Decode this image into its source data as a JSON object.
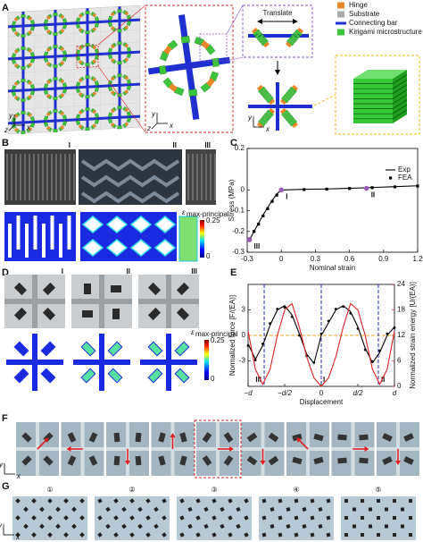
{
  "figure": {
    "panel_labels": [
      "A",
      "B",
      "C",
      "D",
      "E",
      "F",
      "G"
    ],
    "legend": [
      "Hinge",
      "Substrate",
      "Connecting bar",
      "Kirigami microstructure"
    ],
    "translate": "Translate",
    "a_axes": [
      "y",
      "z",
      "x"
    ],
    "a_inset_axes": [
      "y",
      "z",
      "x"
    ],
    "a_lower_axes": [
      "y",
      "x"
    ],
    "b_states": [
      "I",
      "II",
      "III"
    ],
    "b_colorbar": {
      "label": "ε",
      "subscript": "max-principal",
      "ticks": [
        0.25,
        0
      ]
    },
    "d_states": [
      "I",
      "II",
      "III"
    ],
    "d_colorbar": {
      "label": "ε",
      "subscript": "max-principal",
      "ticks": [
        0.25,
        0
      ]
    },
    "f_axes": [
      "y",
      "x"
    ],
    "g_steps": [
      "①",
      "②",
      "③",
      "④",
      "⑤"
    ],
    "g_axes": [
      "y",
      "x"
    ]
  },
  "chart_data": [
    {
      "type": "line",
      "xlabel": "Nominal strain",
      "ylabel": "Stress (MPa)",
      "xlim": [
        -0.3,
        1.2
      ],
      "xticks": [
        -0.3,
        0,
        0.3,
        0.6,
        0.9,
        1.2
      ],
      "ylim": [
        -0.3,
        0.2
      ],
      "yticks": [
        -0.3,
        -0.2,
        -0.1,
        0,
        0.2
      ],
      "x": [
        -0.28,
        -0.24,
        -0.2,
        -0.16,
        -0.12,
        -0.08,
        -0.04,
        0,
        0.2,
        0.4,
        0.6,
        0.8,
        1.0,
        1.2
      ],
      "series": [
        {
          "name": "Exp",
          "color": "#000000",
          "values": [
            -0.24,
            -0.2,
            -0.16,
            -0.12,
            -0.085,
            -0.05,
            -0.02,
            0,
            0.003,
            0.005,
            0.008,
            0.012,
            0.016,
            0.02
          ]
        },
        {
          "name": "FEA",
          "color": "#000000",
          "marker": "square",
          "values": [
            -0.235,
            -0.2,
            -0.165,
            -0.125,
            -0.09,
            -0.055,
            -0.025,
            0,
            0.002,
            0.004,
            0.007,
            0.011,
            0.015,
            0.019
          ]
        }
      ],
      "legend": "right",
      "annotations": [
        {
          "label": "I",
          "x": 0,
          "y": 0
        },
        {
          "label": "II",
          "x": 0.75,
          "y": 0.008
        },
        {
          "label": "III",
          "x": -0.28,
          "y": -0.24
        }
      ],
      "annotation_color": "#9b59b6"
    },
    {
      "type": "line",
      "xlabel": "Displacement",
      "ylabel": "Normalized force [F/(EA)]",
      "y2label": "Normalized strain energy [U/(EA)]",
      "xlim": [
        -1,
        1
      ],
      "xticks": [
        {
          "value": -1,
          "label": "−d"
        },
        {
          "value": -0.5,
          "label": "−d/2"
        },
        0,
        {
          "value": 0.5,
          "label": "d/2"
        },
        {
          "value": 1,
          "label": "d"
        }
      ],
      "ylim": [
        -6,
        6
      ],
      "yticks": [
        -3,
        0,
        3
      ],
      "y2lim": [
        0,
        24
      ],
      "y2ticks": [
        0,
        6,
        12,
        18,
        24
      ],
      "x": [
        -1,
        -0.9,
        -0.8,
        -0.7,
        -0.6,
        -0.5,
        -0.4,
        -0.3,
        -0.2,
        -0.1,
        0,
        0.1,
        0.2,
        0.3,
        0.4,
        0.5,
        0.6,
        0.7,
        0.8,
        0.9,
        1
      ],
      "series": [
        {
          "color": "#000000",
          "values": [
            -1,
            -2.8,
            -1.2,
            1.2,
            3,
            3.5,
            2.4,
            0.2,
            -2.2,
            -3.3,
            0,
            1.5,
            3,
            3.5,
            2.8,
            1,
            -1.5,
            -3.2,
            -2,
            0,
            1
          ]
        },
        {
          "color": "#000000",
          "marker": "circle",
          "values": [
            -1.2,
            -2.9,
            -1,
            1.4,
            3.1,
            3.3,
            2.2,
            0,
            -2.4,
            -3.2,
            0.2,
            1.7,
            3.1,
            3.4,
            2.6,
            0.8,
            -1.7,
            -3.1,
            -1.8,
            0.2,
            0.9
          ]
        },
        {
          "color": "#e02020",
          "axis": "y2",
          "values": [
            13,
            4,
            0.5,
            4,
            12,
            18,
            19.5,
            14,
            7,
            2,
            0,
            2,
            7,
            14,
            19.5,
            18,
            12,
            4,
            0.5,
            4,
            13
          ]
        }
      ],
      "hline": 0,
      "hline_color": "#f0a020",
      "states": [
        {
          "label": "III",
          "x": -0.78
        },
        {
          "label": "I",
          "x": 0
        },
        {
          "label": "II",
          "x": 0.78
        }
      ],
      "state_color": "#2030c0"
    }
  ]
}
